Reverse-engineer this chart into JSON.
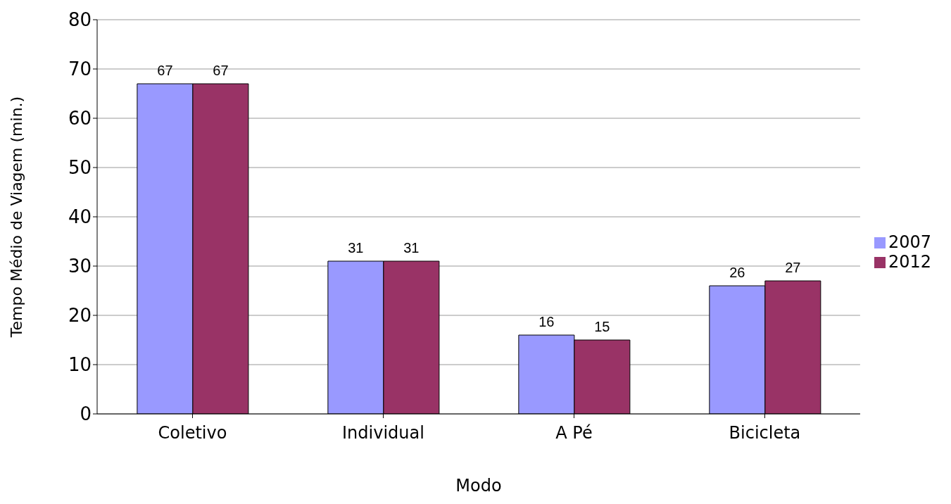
{
  "chart_data": {
    "type": "bar",
    "xlabel": "Modo",
    "ylabel": "Tempo Médio de Viagem  (min.)",
    "categories": [
      "Coletivo",
      "Individual",
      "A Pé",
      "Bicicleta"
    ],
    "series": [
      {
        "name": "2007",
        "color": "#9999ff",
        "values": [
          67,
          31,
          16,
          26
        ]
      },
      {
        "name": "2012",
        "color": "#993366",
        "values": [
          67,
          31,
          15,
          27
        ]
      }
    ],
    "ylim": [
      0,
      80
    ],
    "yticks": [
      0,
      10,
      20,
      30,
      40,
      50,
      60,
      70,
      80
    ],
    "grid": "y",
    "legend": "right",
    "data_labels": true
  }
}
